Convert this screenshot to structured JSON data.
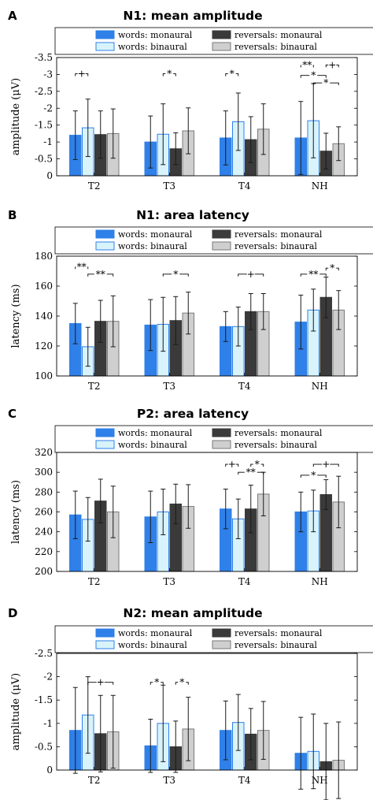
{
  "colors": {
    "words_monaural": "#2f80e8",
    "words_binaural": "#d9f3fb",
    "words_binaural_edge": "#2f80e8",
    "reversals_monaural": "#3a3a3a",
    "reversals_binaural": "#cfcfcf",
    "reversals_binaural_edge": "#7a7a7a",
    "error_bar": "#1a1a1a"
  },
  "chart_data": [
    {
      "type": "bar",
      "panel_label": "A",
      "title": "N1: mean amplitude",
      "ylabel": "amplitude (μV)",
      "ylim": [
        0,
        -3.5
      ],
      "y_inverted": true,
      "yticks": [
        "0",
        "-0.5",
        "-1",
        "-1.5",
        "-2",
        "-2.5",
        "-3",
        "-3.5"
      ],
      "categories": [
        "T2",
        "T3",
        "T4",
        "NH"
      ],
      "legend": [
        "words: monaural",
        "words: binaural",
        "reversals: monaural",
        "reversals: binaural"
      ],
      "series": [
        {
          "name": "words: monaural",
          "values": [
            -1.2,
            -1.0,
            -1.12,
            -1.12
          ],
          "err": [
            0.72,
            0.77,
            0.8,
            1.08
          ]
        },
        {
          "name": "words: binaural",
          "values": [
            -1.42,
            -1.23,
            -1.6,
            -1.63
          ],
          "err": [
            0.85,
            0.9,
            0.85,
            1.1
          ]
        },
        {
          "name": "reversals: monaural",
          "values": [
            -1.22,
            -0.8,
            -1.07,
            -0.73
          ],
          "err": [
            0.7,
            0.47,
            0.68,
            0.53
          ]
        },
        {
          "name": "reversals: binaural",
          "values": [
            -1.25,
            -1.33,
            -1.38,
            -0.95
          ],
          "err": [
            0.73,
            0.68,
            0.75,
            0.5
          ]
        }
      ],
      "significance": [
        {
          "cat": 0,
          "from": 0,
          "to": 1,
          "y": -3.02,
          "label": "+"
        },
        {
          "cat": 1,
          "from": 1,
          "to": 2,
          "y": -3.02,
          "label": "*"
        },
        {
          "cat": 2,
          "from": 0,
          "to": 1,
          "y": -3.02,
          "label": "*"
        },
        {
          "cat": 3,
          "from": 0,
          "to": 1,
          "y": -3.28,
          "label": "**"
        },
        {
          "cat": 3,
          "from": 2,
          "to": 3,
          "y": -3.28,
          "label": "+"
        },
        {
          "cat": 3,
          "from": 0,
          "to": 2,
          "y": -2.97,
          "label": "*"
        },
        {
          "cat": 3,
          "from": 1,
          "to": 3,
          "y": -2.75,
          "label": "*"
        }
      ]
    },
    {
      "type": "bar",
      "panel_label": "B",
      "title": "N1: area latency",
      "ylabel": "latency (ms)",
      "ylim": [
        100,
        180
      ],
      "y_inverted": false,
      "yticks": [
        "100",
        "120",
        "140",
        "160",
        "180"
      ],
      "categories": [
        "T2",
        "T3",
        "T4",
        "NH"
      ],
      "legend": [
        "words: monaural",
        "words: binaural",
        "reversals: monaural",
        "reversals: binaural"
      ],
      "series": [
        {
          "name": "words: monaural",
          "values": [
            135,
            134,
            133,
            136
          ],
          "err": [
            13.5,
            17,
            10,
            18
          ]
        },
        {
          "name": "words: binaural",
          "values": [
            119.5,
            134.5,
            133,
            144
          ],
          "err": [
            13,
            18,
            13,
            14
          ]
        },
        {
          "name": "reversals: monaural",
          "values": [
            136.5,
            137,
            143,
            152.5
          ],
          "err": [
            14,
            16,
            12,
            13.5
          ]
        },
        {
          "name": "reversals: binaural",
          "values": [
            136.5,
            142,
            143,
            144
          ],
          "err": [
            17,
            14,
            12,
            13
          ]
        }
      ],
      "significance": [
        {
          "cat": 0,
          "from": 0,
          "to": 1,
          "y": 173,
          "label": "**"
        },
        {
          "cat": 0,
          "from": 1,
          "to": 3,
          "y": 168,
          "label": "**"
        },
        {
          "cat": 1,
          "from": 1,
          "to": 3,
          "y": 168,
          "label": "*"
        },
        {
          "cat": 2,
          "from": 1,
          "to": 3,
          "y": 168,
          "label": "+"
        },
        {
          "cat": 3,
          "from": 0,
          "to": 2,
          "y": 168,
          "label": "**"
        },
        {
          "cat": 3,
          "from": 2,
          "to": 3,
          "y": 172,
          "label": "*"
        }
      ]
    },
    {
      "type": "bar",
      "panel_label": "C",
      "title": "P2: area latency",
      "ylabel": "latency (ms)",
      "ylim": [
        200,
        320
      ],
      "y_inverted": false,
      "yticks": [
        "200",
        "220",
        "240",
        "260",
        "280",
        "300",
        "320"
      ],
      "categories": [
        "T2",
        "T3",
        "T4",
        "NH"
      ],
      "legend": [
        "words: monaural",
        "words: binaural",
        "reversals: monaural",
        "reversals: binaural"
      ],
      "series": [
        {
          "name": "words: monaural",
          "values": [
            257,
            255,
            263,
            260
          ],
          "err": [
            24,
            26,
            20,
            20
          ]
        },
        {
          "name": "words: binaural",
          "values": [
            252.5,
            260,
            253,
            261
          ],
          "err": [
            22,
            23,
            20,
            21
          ]
        },
        {
          "name": "reversals: monaural",
          "values": [
            271,
            268,
            263,
            277.5
          ],
          "err": [
            22,
            20,
            24,
            15
          ]
        },
        {
          "name": "reversals: binaural",
          "values": [
            260,
            265.5,
            278,
            270
          ],
          "err": [
            26,
            22,
            22,
            26
          ]
        }
      ],
      "significance": [
        {
          "cat": 2,
          "from": 0,
          "to": 1,
          "y": 308,
          "label": "+"
        },
        {
          "cat": 2,
          "from": 2,
          "to": 3,
          "y": 308,
          "label": "*"
        },
        {
          "cat": 2,
          "from": 1,
          "to": 3,
          "y": 300,
          "label": "**"
        },
        {
          "cat": 3,
          "from": 1,
          "to": 3,
          "y": 308,
          "label": "+"
        },
        {
          "cat": 3,
          "from": 0,
          "to": 2,
          "y": 297,
          "label": "*"
        }
      ]
    },
    {
      "type": "bar",
      "panel_label": "D",
      "title": "N2: mean amplitude",
      "ylabel": "amplitude (μV)",
      "ylim": [
        0,
        -2.5
      ],
      "y_inverted": true,
      "yticks": [
        "0",
        "-0.5",
        "-1",
        "-1.5",
        "-2",
        "-2.5"
      ],
      "categories": [
        "T2",
        "T3",
        "T4",
        "NH"
      ],
      "legend": [
        "words: monaural",
        "words: binaural",
        "reversals: monaural",
        "reversals: binaural"
      ],
      "series": [
        {
          "name": "words: monaural",
          "values": [
            -0.85,
            -0.52,
            -0.85,
            -0.36
          ],
          "err": [
            0.92,
            0.57,
            0.63,
            0.77
          ]
        },
        {
          "name": "words: binaural",
          "values": [
            -1.18,
            -1.0,
            -1.02,
            -0.4
          ],
          "err": [
            0.82,
            0.82,
            0.6,
            0.8
          ]
        },
        {
          "name": "reversals: monaural",
          "values": [
            -0.78,
            -0.5,
            -0.77,
            -0.18
          ],
          "err": [
            0.82,
            0.55,
            0.55,
            0.82
          ]
        },
        {
          "name": "reversals: binaural",
          "values": [
            -0.82,
            -0.88,
            -0.85,
            -0.21
          ],
          "err": [
            0.78,
            0.68,
            0.62,
            0.82
          ]
        }
      ],
      "significance": [
        {
          "cat": 0,
          "from": 1,
          "to": 3,
          "y": -1.88,
          "label": "+"
        },
        {
          "cat": 1,
          "from": 0,
          "to": 1,
          "y": -1.88,
          "label": "*"
        },
        {
          "cat": 1,
          "from": 2,
          "to": 3,
          "y": -1.88,
          "label": "*"
        }
      ]
    }
  ]
}
